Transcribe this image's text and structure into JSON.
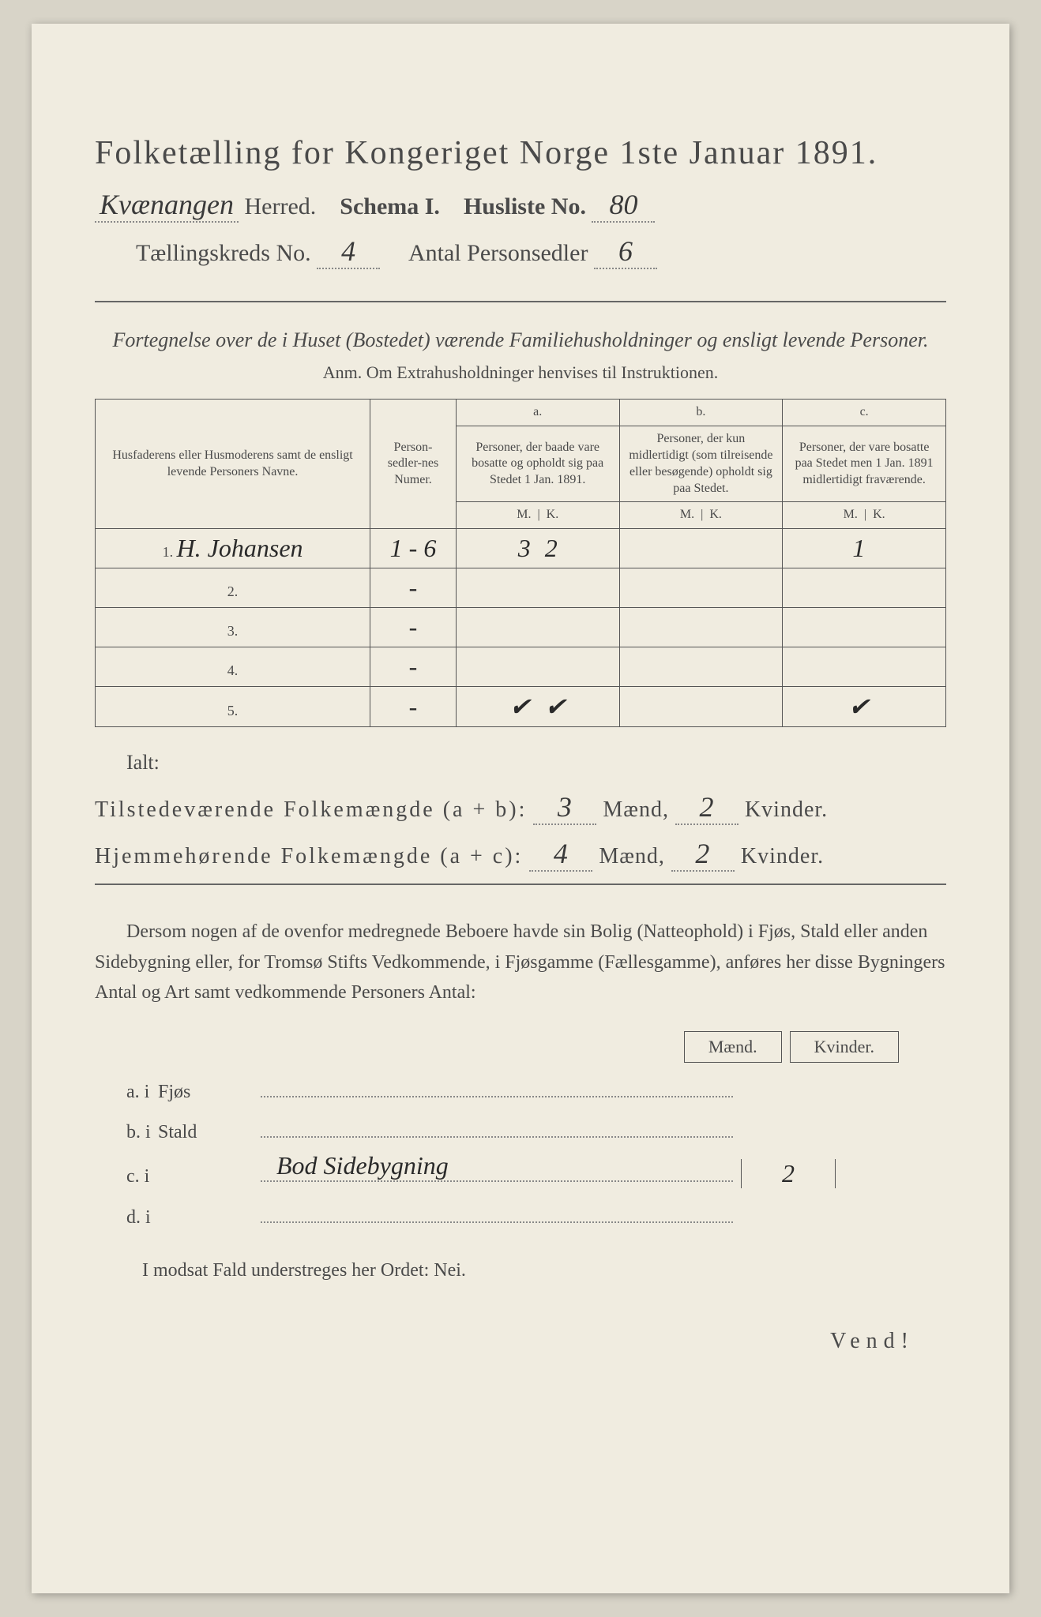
{
  "title": "Folketælling for Kongeriget Norge 1ste Januar 1891.",
  "herred_hw": "Kvænangen",
  "herred_label": "Herred.",
  "schema_label": "Schema I.",
  "husliste_label": "Husliste No.",
  "husliste_no": "80",
  "kreds_label": "Tællingskreds No.",
  "kreds_no": "4",
  "personsedler_label": "Antal Personsedler",
  "personsedler_no": "6",
  "sub_heading": "Fortegnelse over de i Huset (Bostedet) værende Familiehusholdninger og ensligt levende Personer.",
  "anm": "Anm. Om Extrahusholdninger henvises til Instruktionen.",
  "col1": "Husfaderens eller Husmoderens samt de ensligt levende Personers Navne.",
  "col2": "Person-sedler-nes Numer.",
  "col_a_top": "a.",
  "col_a": "Personer, der baade vare bosatte og opholdt sig paa Stedet 1 Jan. 1891.",
  "col_b_top": "b.",
  "col_b": "Personer, der kun midlertidigt (som tilreisende eller besøgende) opholdt sig paa Stedet.",
  "col_c_top": "c.",
  "col_c": "Personer, der vare bosatte paa Stedet men 1 Jan. 1891 midlertidigt fraværende.",
  "mk_m": "M.",
  "mk_k": "K.",
  "rows": [
    {
      "n": "1.",
      "name": "H. Johansen",
      "num": "1 - 6",
      "am": "3",
      "ak": "2",
      "bm": "",
      "bk": "",
      "cm": "1",
      "ck": ""
    },
    {
      "n": "2.",
      "name": "",
      "num": "-",
      "am": "",
      "ak": "",
      "bm": "",
      "bk": "",
      "cm": "",
      "ck": ""
    },
    {
      "n": "3.",
      "name": "",
      "num": "-",
      "am": "",
      "ak": "",
      "bm": "",
      "bk": "",
      "cm": "",
      "ck": ""
    },
    {
      "n": "4.",
      "name": "",
      "num": "-",
      "am": "",
      "ak": "",
      "bm": "",
      "bk": "",
      "cm": "",
      "ck": ""
    },
    {
      "n": "5.",
      "name": "",
      "num": "-",
      "am": "✔",
      "ak": "✔",
      "bm": "",
      "bk": "",
      "cm": "✔",
      "ck": ""
    }
  ],
  "ialt": "Ialt:",
  "tilstede_label": "Tilstedeværende Folkemængde (a + b):",
  "tilstede_m": "3",
  "tilstede_k": "2",
  "hjemme_label": "Hjemmehørende Folkemængde (a + c):",
  "hjemme_m": "4",
  "hjemme_k": "2",
  "maend": "Mænd,",
  "kvinder": "Kvinder.",
  "paragraph": "Dersom nogen af de ovenfor medregnede Beboere havde sin Bolig (Natteophold) i Fjøs, Stald eller anden Sidebygning eller, for Tromsø Stifts Vedkommende, i Fjøsgamme (Fællesgamme), anføres her disse Bygningers Antal og Art samt vedkommende Personers Antal:",
  "mk_maend": "Mænd.",
  "mk_kvinder": "Kvinder.",
  "buildings": [
    {
      "label": "a. i",
      "name": "Fjøs",
      "hw": "",
      "m": "",
      "k": ""
    },
    {
      "label": "b. i",
      "name": "Stald",
      "hw": "",
      "m": "",
      "k": ""
    },
    {
      "label": "c. i",
      "name": "",
      "hw": "Bod Sidebygning",
      "m": "2",
      "k": ""
    },
    {
      "label": "d. i",
      "name": "",
      "hw": "",
      "m": "",
      "k": ""
    }
  ],
  "modsat": "I modsat Fald understreges her Ordet: Nei.",
  "vend": "Vend!"
}
